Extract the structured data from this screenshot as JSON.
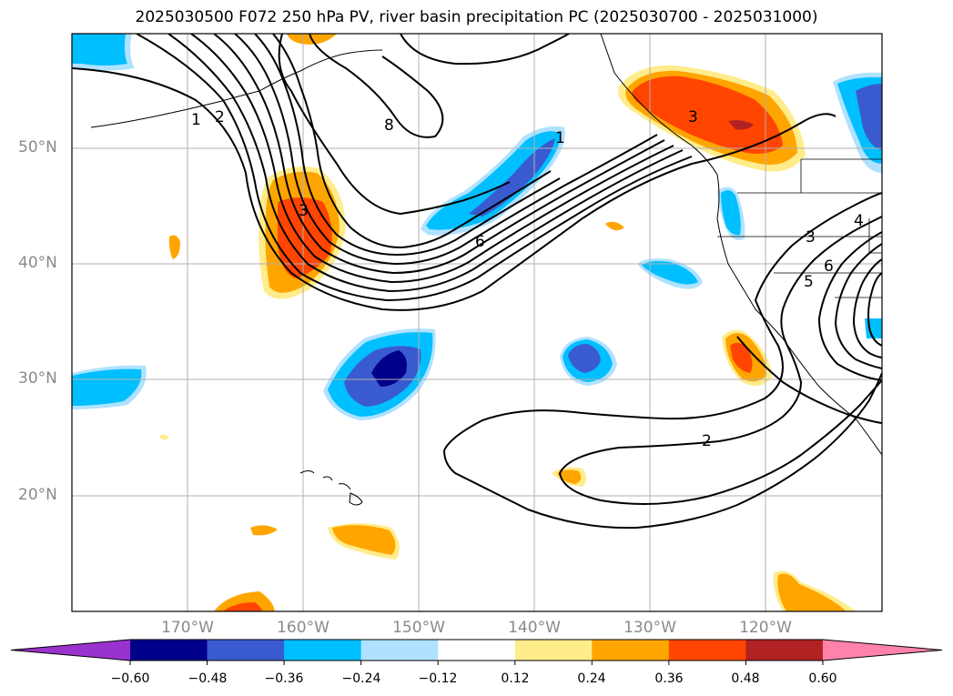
{
  "title": "2025030500 F072 250 hPa PV, river basin precipitation PC (2025030700 - 2025031000)",
  "map": {
    "lat_labels": [
      "50°N",
      "40°N",
      "30°N",
      "20°N"
    ],
    "lon_labels": [
      "170°W",
      "160°W",
      "150°W",
      "140°W",
      "130°W",
      "120°W"
    ],
    "pv_contour_labels": [
      "1",
      "2",
      "8",
      "6",
      "1",
      "3",
      "4",
      "3",
      "5",
      "6",
      "2",
      "3"
    ]
  },
  "colorbar": {
    "ticks": [
      "−0.60",
      "−0.48",
      "−0.36",
      "−0.24",
      "−0.12",
      "0.12",
      "0.24",
      "0.36",
      "0.48",
      "0.60"
    ],
    "colors": [
      "#9a32cd",
      "#00008b",
      "#3a5bd0",
      "#00bfff",
      "#b0e2ff",
      "#ffffff",
      "#ffec8b",
      "#ffa500",
      "#ff4500",
      "#b22222",
      "#ff82ab"
    ]
  }
}
